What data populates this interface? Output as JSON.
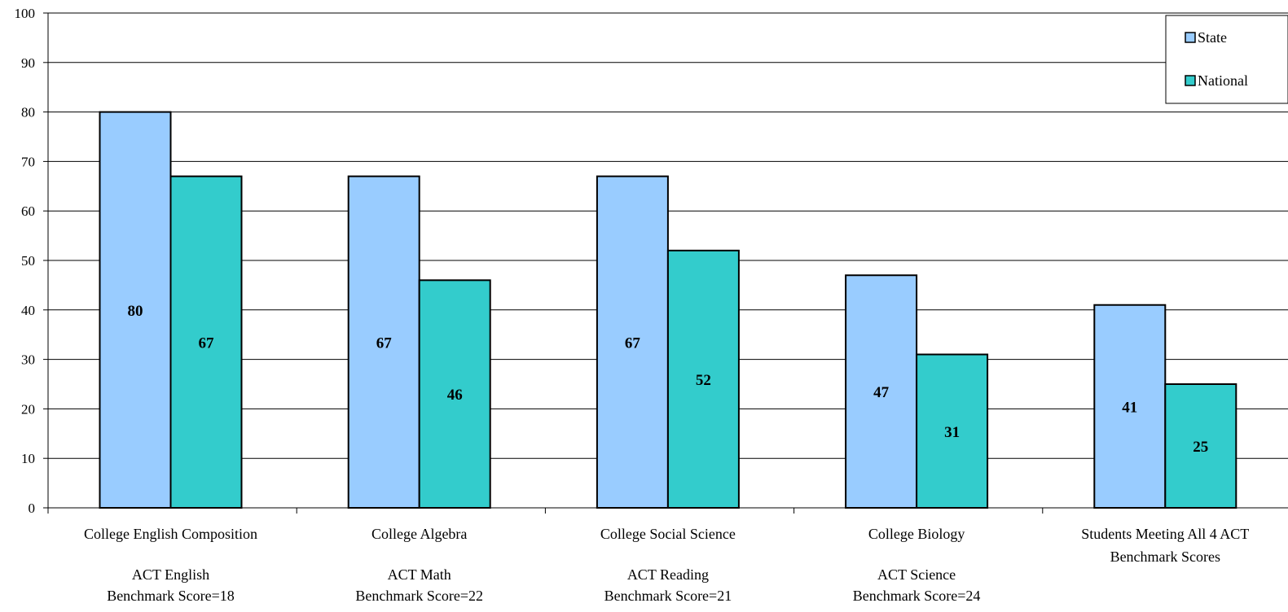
{
  "chart_data": {
    "type": "bar",
    "categories": [
      [
        "College English Composition",
        "",
        "ACT English",
        "Benchmark Score=18"
      ],
      [
        "College Algebra",
        "",
        "ACT Math",
        "Benchmark Score=22"
      ],
      [
        "College Social Science",
        "",
        "ACT Reading",
        "Benchmark Score=21"
      ],
      [
        "College Biology",
        "",
        "ACT Science",
        "Benchmark Score=24"
      ],
      [
        "Students Meeting All 4 ACT",
        "Benchmark Scores"
      ]
    ],
    "series": [
      {
        "name": "State",
        "values": [
          80,
          67,
          67,
          47,
          41
        ],
        "color": "#99ccff"
      },
      {
        "name": "National",
        "values": [
          67,
          46,
          52,
          31,
          25
        ],
        "color": "#33cccc"
      }
    ],
    "ylim": [
      0,
      100
    ],
    "yticks": [
      0,
      10,
      20,
      30,
      40,
      50,
      60,
      70,
      80,
      90,
      100
    ],
    "grid": true,
    "legend_position": "top-right"
  }
}
